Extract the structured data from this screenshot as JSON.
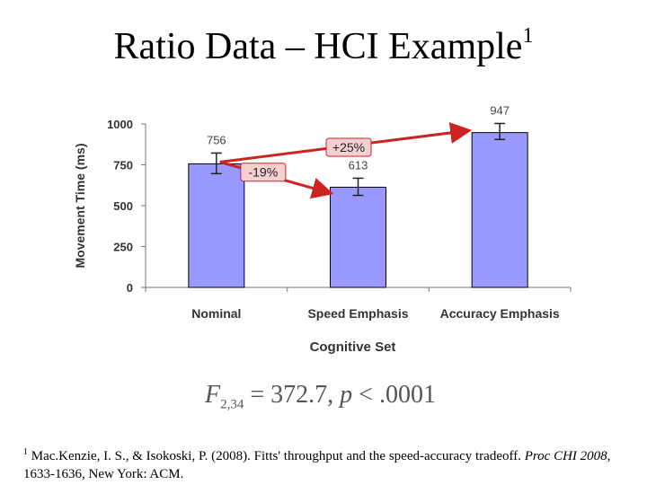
{
  "slide": {
    "title": "Ratio Data – HCI Example",
    "title_footnote_mark": "1"
  },
  "chart_data": {
    "type": "bar",
    "categories": [
      "Nominal",
      "Speed Emphasis",
      "Accuracy Emphasis"
    ],
    "values": [
      756,
      613,
      947
    ],
    "data_labels": [
      "756",
      "613",
      "947"
    ],
    "error_bars": [
      {
        "low": 696,
        "high": 822
      },
      {
        "low": 563,
        "high": 668
      },
      {
        "low": 905,
        "high": 1003
      }
    ],
    "xlabel": "Cognitive Set",
    "ylabel": "Movement Time (ms)",
    "ylim": [
      0,
      1000
    ],
    "yticks": [
      0,
      250,
      500,
      750,
      1000
    ],
    "ytick_labels": [
      "0",
      "250",
      "500",
      "750",
      "1000"
    ],
    "bar_color": "#9999ff",
    "grid": false,
    "annotations": [
      {
        "label": "-19%",
        "from_category": "Nominal",
        "to_category": "Speed Emphasis"
      },
      {
        "label": "+25%",
        "from_category": "Nominal",
        "to_category": "Accuracy Emphasis"
      }
    ],
    "annotation_color": "#cc2222",
    "annotation_fill": "#f6d0d0"
  },
  "stats": {
    "F": "F",
    "df": "2,34",
    "equals": "= 372.7,",
    "p": "p",
    "p_rest": "< .0001"
  },
  "footnote": {
    "mark": "1",
    "text_before": "Mac.Kenzie, I. S., & Isokoski, P. (2008). Fitts' throughput and the speed-accuracy tradeoff.",
    "venue": "Proc CHI 2008",
    "text_after": ", 1633-1636, New York: ACM."
  }
}
